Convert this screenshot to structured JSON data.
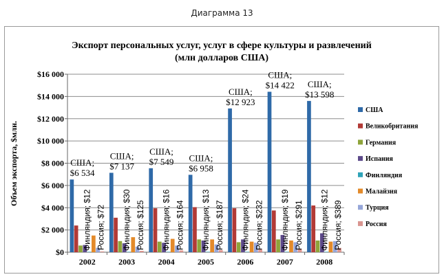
{
  "caption": "Диаграмма 13",
  "chart_data": {
    "type": "bar",
    "title_line1": "Экспорт персональных услуг, услуг в сфере культуры и развлечений",
    "title_line2": "(млн долларов США)",
    "ylabel": "Объем экспорта, $млн.",
    "ylim": [
      0,
      16000
    ],
    "yticks": [
      0,
      2000,
      4000,
      6000,
      8000,
      10000,
      12000,
      14000,
      16000
    ],
    "ytick_labels": [
      "$0",
      "$2 000",
      "$4 000",
      "$6 000",
      "$8 000",
      "$10 000",
      "$12 000",
      "$14 000",
      "$16 000"
    ],
    "categories": [
      "2002",
      "2003",
      "2004",
      "2005",
      "2006",
      "2007",
      "2008"
    ],
    "grid": true,
    "legend_position": "right",
    "series": [
      {
        "name": "США",
        "color": "#2f6aa8",
        "values": [
          6534,
          7137,
          7549,
          6958,
          12923,
          14422,
          13598
        ],
        "labels": [
          "$6 534",
          "$7 137",
          "$7 549",
          "$6 958",
          "$12 923",
          "$14 422",
          "$13 598"
        ]
      },
      {
        "name": "Великобритания",
        "color": "#b23a36",
        "values": [
          2400,
          3100,
          3950,
          4050,
          3950,
          3750,
          4200
        ]
      },
      {
        "name": "Германия",
        "color": "#8ea43a",
        "values": [
          600,
          1000,
          950,
          1150,
          900,
          1150,
          1050
        ]
      },
      {
        "name": "Испания",
        "color": "#5d4a8a",
        "values": [
          650,
          800,
          850,
          1050,
          1150,
          1550,
          1700
        ]
      },
      {
        "name": "Финляндия",
        "color": "#2fa3b8",
        "values": [
          12,
          30,
          16,
          13,
          24,
          19,
          12
        ],
        "labels": [
          "$12",
          "$30",
          "$16",
          "$13",
          "$24",
          "$19",
          "$12"
        ]
      },
      {
        "name": "Малайзия",
        "color": "#e38a2a",
        "values": [
          1500,
          1350,
          1200,
          1150,
          950,
          1050,
          950
        ]
      },
      {
        "name": "Турция",
        "color": "#96a6d8",
        "values": [
          400,
          500,
          600,
          700,
          850,
          900,
          1000
        ]
      },
      {
        "name": "Россия",
        "color": "#d99590",
        "values": [
          72,
          125,
          164,
          187,
          232,
          291,
          389
        ],
        "labels": [
          "$72",
          "$125",
          "$164",
          "$187",
          "$232",
          "$291",
          "$389"
        ]
      }
    ],
    "annotation_country_labels": {
      "usa": "США;",
      "finland": "Финляндия",
      "russia": "Россия"
    }
  }
}
